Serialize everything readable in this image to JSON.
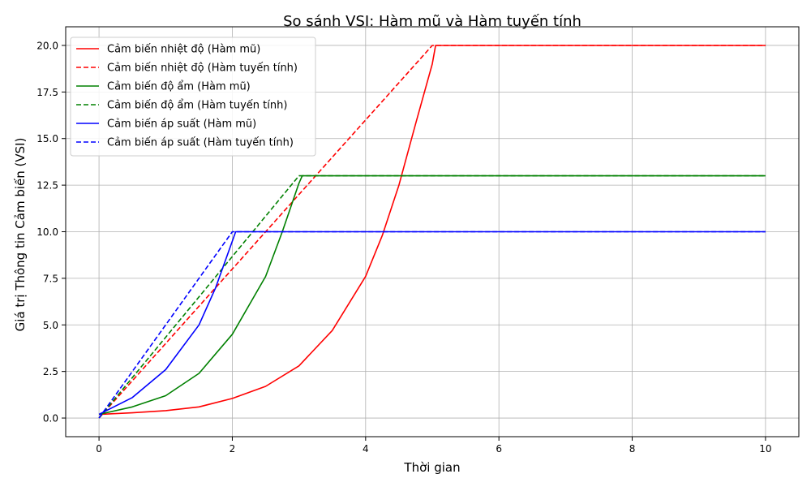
{
  "chart_data": {
    "type": "line",
    "title": "So sánh VSI: Hàm mũ và Hàm tuyến tính",
    "xlabel": "Thời gian",
    "ylabel": "Giá trị Thông tin Cảm biến (VSI)",
    "xlim": [
      -0.5,
      10.5
    ],
    "ylim": [
      -1.0,
      21.0
    ],
    "xticks": [
      0,
      2,
      4,
      6,
      8,
      10
    ],
    "xtick_labels": [
      "0",
      "2",
      "4",
      "6",
      "8",
      "10"
    ],
    "yticks": [
      0.0,
      2.5,
      5.0,
      7.5,
      10.0,
      12.5,
      15.0,
      17.5,
      20.0
    ],
    "ytick_labels": [
      "0.0",
      "2.5",
      "5.0",
      "7.5",
      "10.0",
      "12.5",
      "15.0",
      "17.5",
      "20.0"
    ],
    "grid": true,
    "legend_position": "top-left",
    "series": [
      {
        "name": "Cảm biến nhiệt độ (Hàm mũ)",
        "color": "#ff0000",
        "dash": "solid",
        "x": [
          0,
          0.5,
          1,
          1.5,
          2,
          2.5,
          3,
          3.5,
          4,
          4.25,
          4.5,
          4.75,
          5,
          5.05,
          10
        ],
        "y": [
          0.2,
          0.28,
          0.4,
          0.6,
          1.05,
          1.7,
          2.8,
          4.7,
          7.6,
          9.8,
          12.5,
          15.8,
          19.0,
          20.0,
          20.0
        ]
      },
      {
        "name": "Cảm biến nhiệt độ (Hàm tuyến tính)",
        "color": "#ff0000",
        "dash": "dashed",
        "x": [
          0,
          5,
          5.05,
          10
        ],
        "y": [
          0.0,
          20.0,
          20.0,
          20.0
        ]
      },
      {
        "name": "Cảm biến độ ẩm (Hàm mũ)",
        "color": "#008000",
        "dash": "solid",
        "x": [
          0,
          0.5,
          1,
          1.5,
          2,
          2.5,
          2.75,
          3,
          3.05,
          10
        ],
        "y": [
          0.2,
          0.6,
          1.2,
          2.4,
          4.5,
          7.6,
          10.0,
          12.6,
          13.0,
          13.0
        ]
      },
      {
        "name": "Cảm biến độ ẩm (Hàm tuyến tính)",
        "color": "#008000",
        "dash": "dashed",
        "x": [
          0,
          3,
          3.05,
          10
        ],
        "y": [
          0.0,
          13.0,
          13.0,
          13.0
        ]
      },
      {
        "name": "Cảm biến áp suất (Hàm mũ)",
        "color": "#0000ff",
        "dash": "solid",
        "x": [
          0,
          0.5,
          1,
          1.5,
          1.75,
          2,
          2.05,
          10
        ],
        "y": [
          0.2,
          1.1,
          2.6,
          5.0,
          7.0,
          9.5,
          10.0,
          10.0
        ]
      },
      {
        "name": "Cảm biến áp suất (Hàm tuyến tính)",
        "color": "#0000ff",
        "dash": "dashed",
        "x": [
          0,
          2,
          2.05,
          10
        ],
        "y": [
          0.0,
          10.0,
          10.0,
          10.0
        ]
      }
    ]
  }
}
